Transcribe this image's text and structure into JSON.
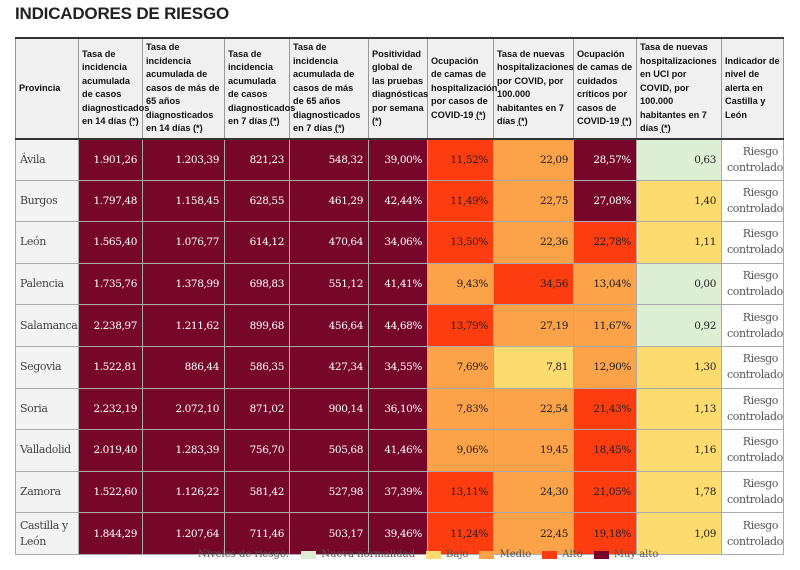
{
  "title": "INDICADORES DE RIESGO",
  "colors": {
    "nueva": "#dcefd4",
    "bajo": "#fedb6e",
    "medio": "#fca34a",
    "alto": "#fd3d10",
    "muy_alto": "#76072b"
  },
  "headers": [
    {
      "text": "Provincia",
      "ref": ""
    },
    {
      "text": "Tasa de incidencia acumulada de casos diagnosticados en 14 días",
      "ref": "(*)"
    },
    {
      "text": "Tasa de incidencia acumulada de casos de más de 65 años diagnosticados en 14 días",
      "ref": "(*)"
    },
    {
      "text": "Tasa de incidencia acumulada de casos diagnosticados en 7 días",
      "ref": "(*)"
    },
    {
      "text": "Tasa de incidencia acumulada de casos de más de 65 años diagnosticados en 7 días",
      "ref": "(*)"
    },
    {
      "text": "Positividad global de las pruebas diagnósticas por semana",
      "ref": "(*)"
    },
    {
      "text": "Ocupación de camas de hospitalización por casos de COVID-19",
      "ref": "(*)"
    },
    {
      "text": "Tasa de nuevas hospitalizaciones por COVID, por 100.000 habitantes en 7 días",
      "ref": "(*)"
    },
    {
      "text": "Ocupación de camas de cuidados críticos por casos de COVID-19",
      "ref": "(*)"
    },
    {
      "text": "Tasa de nuevas hospitalizaciones en UCI por COVID, por 100.000 habitantes en 7 días",
      "ref": "(*)"
    },
    {
      "text": "Indicador de nivel de alerta en Castilla y León",
      "ref": ""
    }
  ],
  "rows": [
    {
      "provincia": "Ávila",
      "values": [
        "1.901,26",
        "1.203,39",
        "821,23",
        "548,32",
        "39,00%",
        "11,52%",
        "22,09",
        "28,57%",
        "0,63"
      ],
      "levels": [
        "muy_alto",
        "muy_alto",
        "muy_alto",
        "muy_alto",
        "muy_alto",
        "alto",
        "medio",
        "muy_alto",
        "nueva"
      ],
      "alerta": "Riesgo controlado"
    },
    {
      "provincia": "Burgos",
      "values": [
        "1.797,48",
        "1.158,45",
        "628,55",
        "461,29",
        "42,44%",
        "11,49%",
        "22,75",
        "27,08%",
        "1,40"
      ],
      "levels": [
        "muy_alto",
        "muy_alto",
        "muy_alto",
        "muy_alto",
        "muy_alto",
        "alto",
        "medio",
        "muy_alto",
        "bajo"
      ],
      "alerta": "Riesgo controlado"
    },
    {
      "provincia": "León",
      "values": [
        "1.565,40",
        "1.076,77",
        "614,12",
        "470,64",
        "34,06%",
        "13,50%",
        "22,36",
        "22,78%",
        "1,11"
      ],
      "levels": [
        "muy_alto",
        "muy_alto",
        "muy_alto",
        "muy_alto",
        "muy_alto",
        "alto",
        "medio",
        "alto",
        "bajo"
      ],
      "alerta": "Riesgo controlado"
    },
    {
      "provincia": "Palencia",
      "values": [
        "1.735,76",
        "1.378,99",
        "698,83",
        "551,12",
        "41,41%",
        "9,43%",
        "34,56",
        "13,04%",
        "0,00"
      ],
      "levels": [
        "muy_alto",
        "muy_alto",
        "muy_alto",
        "muy_alto",
        "muy_alto",
        "medio",
        "alto",
        "medio",
        "nueva"
      ],
      "alerta": "Riesgo controlado"
    },
    {
      "provincia": "Salamanca",
      "values": [
        "2.238,97",
        "1.211,62",
        "899,68",
        "456,64",
        "44,68%",
        "13,79%",
        "27,19",
        "11,67%",
        "0,92"
      ],
      "levels": [
        "muy_alto",
        "muy_alto",
        "muy_alto",
        "muy_alto",
        "muy_alto",
        "alto",
        "medio",
        "medio",
        "nueva"
      ],
      "alerta": "Riesgo controlado"
    },
    {
      "provincia": "Segovia",
      "values": [
        "1.522,81",
        "886,44",
        "586,35",
        "427,34",
        "34,55%",
        "7,69%",
        "7,81",
        "12,90%",
        "1,30"
      ],
      "levels": [
        "muy_alto",
        "muy_alto",
        "muy_alto",
        "muy_alto",
        "muy_alto",
        "medio",
        "bajo",
        "medio",
        "bajo"
      ],
      "alerta": "Riesgo controlado"
    },
    {
      "provincia": "Soria",
      "values": [
        "2.232,19",
        "2.072,10",
        "871,02",
        "900,14",
        "36,10%",
        "7,83%",
        "22,54",
        "21,43%",
        "1,13"
      ],
      "levels": [
        "muy_alto",
        "muy_alto",
        "muy_alto",
        "muy_alto",
        "muy_alto",
        "medio",
        "medio",
        "alto",
        "bajo"
      ],
      "alerta": "Riesgo controlado"
    },
    {
      "provincia": "Valladolid",
      "values": [
        "2.019,40",
        "1.283,39",
        "756,70",
        "505,68",
        "41,46%",
        "9,06%",
        "19,45",
        "18,45%",
        "1,16"
      ],
      "levels": [
        "muy_alto",
        "muy_alto",
        "muy_alto",
        "muy_alto",
        "muy_alto",
        "medio",
        "medio",
        "alto",
        "bajo"
      ],
      "alerta": "Riesgo controlado"
    },
    {
      "provincia": "Zamora",
      "values": [
        "1.522,60",
        "1.126,22",
        "581,42",
        "527,98",
        "37,39%",
        "13,11%",
        "24,30",
        "21,05%",
        "1,78"
      ],
      "levels": [
        "muy_alto",
        "muy_alto",
        "muy_alto",
        "muy_alto",
        "muy_alto",
        "alto",
        "medio",
        "alto",
        "bajo"
      ],
      "alerta": "Riesgo controlado"
    },
    {
      "provincia": "Castilla y León",
      "values": [
        "1.844,29",
        "1.207,64",
        "711,46",
        "503,17",
        "39,46%",
        "11,24%",
        "22,45",
        "19,18%",
        "1,09"
      ],
      "levels": [
        "muy_alto",
        "muy_alto",
        "muy_alto",
        "muy_alto",
        "muy_alto",
        "alto",
        "medio",
        "alto",
        "bajo"
      ],
      "alerta": "Riesgo controlado"
    }
  ],
  "legend": {
    "label": "Niveles de riesgo:",
    "items": [
      {
        "key": "nueva",
        "label": "Nueva normalidad"
      },
      {
        "key": "bajo",
        "label": "Bajo"
      },
      {
        "key": "medio",
        "label": "Medio"
      },
      {
        "key": "alto",
        "label": "Alto"
      },
      {
        "key": "muy_alto",
        "label": "Muy alto"
      }
    ]
  }
}
